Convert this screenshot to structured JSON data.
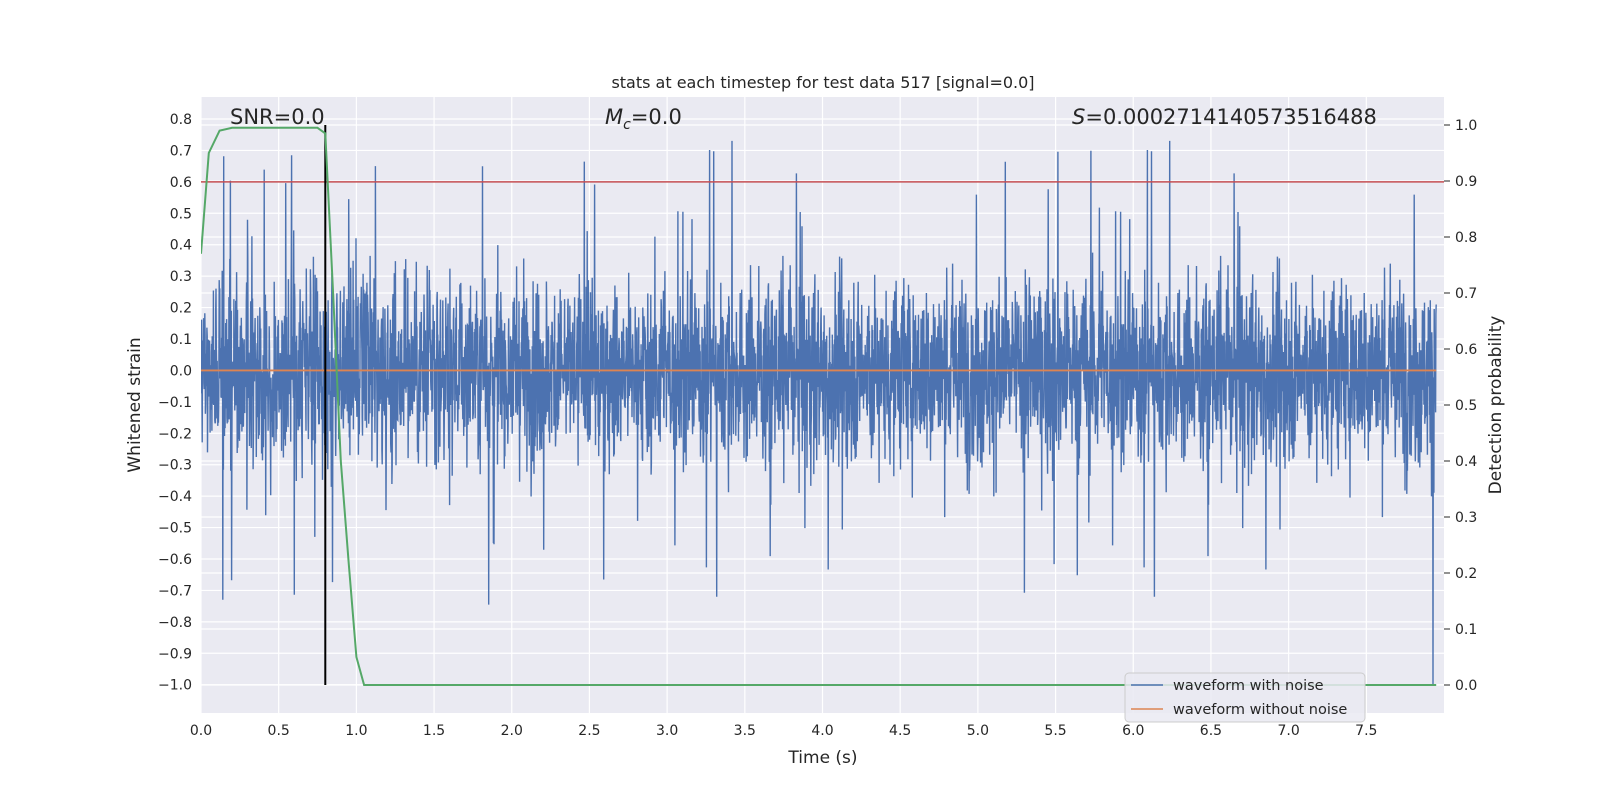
{
  "chart_data": {
    "type": "line",
    "title": "stats at each timestep for test data 517 [signal=0.0]",
    "xlabel": "Time (s)",
    "ylabel": "Whitened strain",
    "y2label": "Detection probability",
    "xlim": [
      0.0,
      8.0
    ],
    "ylim": [
      -1.09,
      0.87
    ],
    "y2lim": [
      -0.05,
      1.05
    ],
    "xticks": [
      0.0,
      0.5,
      1.0,
      1.5,
      2.0,
      2.5,
      3.0,
      3.5,
      4.0,
      4.5,
      5.0,
      5.5,
      6.0,
      6.5,
      7.0,
      7.5
    ],
    "xtick_labels": [
      "0.0",
      "0.5",
      "1.0",
      "1.5",
      "2.0",
      "2.5",
      "3.0",
      "3.5",
      "4.0",
      "4.5",
      "5.0",
      "5.5",
      "6.0",
      "6.5",
      "7.0",
      "7.5"
    ],
    "yticks": [
      0.8,
      0.7,
      0.6,
      0.5,
      0.4,
      0.3,
      0.2,
      0.1,
      0.0,
      -0.1,
      -0.2,
      -0.3,
      -0.4,
      -0.5,
      -0.6,
      -0.7,
      -0.8,
      -0.9,
      -1.0
    ],
    "ytick_labels": [
      "0.8",
      "0.7",
      "0.6",
      "0.5",
      "0.4",
      "0.3",
      "0.2",
      "0.1",
      "0.0",
      "−0.1",
      "−0.2",
      "−0.3",
      "−0.4",
      "−0.5",
      "−0.6",
      "−0.7",
      "−0.8",
      "−0.9",
      "−1.0"
    ],
    "y2ticks": [
      1.0,
      0.9,
      0.8,
      0.7,
      0.6,
      0.5,
      0.4,
      0.3,
      0.2,
      0.1,
      0.0
    ],
    "y2tick_labels": [
      "1.0",
      "0.9",
      "0.8",
      "0.7",
      "0.6",
      "0.5",
      "0.4",
      "0.3",
      "0.2",
      "0.1",
      "0.0"
    ],
    "annotations": {
      "snr": "SNR=0.0",
      "mc_symbol": "M",
      "mc_sub": "c",
      "mc_value": "=0.0",
      "s_symbol": "S",
      "s_value": "=0.0002714140573516488"
    },
    "threshold_y": 0.6,
    "vertical_marker_x": 0.8,
    "series": [
      {
        "name": "waveform with noise",
        "color": "#4c72b0",
        "axis": "left",
        "description_range": [
          -1.0,
          0.78
        ],
        "typical_amplitude": 0.25
      },
      {
        "name": "waveform without noise",
        "color": "#dd8452",
        "axis": "left",
        "value": 0.0
      },
      {
        "name": "detection probability",
        "color": "#55a868",
        "axis": "right",
        "x": [
          0.0,
          0.05,
          0.12,
          0.2,
          0.3,
          0.4,
          0.5,
          0.6,
          0.7,
          0.75,
          0.8,
          0.85,
          0.9,
          0.95,
          1.0,
          1.05,
          1.1,
          1.5,
          2.0,
          3.0,
          4.0,
          5.0,
          6.0,
          7.0,
          7.95
        ],
        "values": [
          0.77,
          0.95,
          0.99,
          0.995,
          0.995,
          0.995,
          0.995,
          0.995,
          0.995,
          0.995,
          0.985,
          0.7,
          0.4,
          0.22,
          0.05,
          0.0,
          0.0,
          0.0,
          0.0,
          0.0,
          0.0,
          0.0,
          0.0,
          0.0,
          0.0
        ]
      }
    ],
    "legend": {
      "placement": "lower-right",
      "entries": [
        "waveform with noise",
        "waveform without noise"
      ]
    },
    "grid": true,
    "colors": {
      "plot_bg": "#eaeaf2",
      "grid": "#ffffff",
      "threshold": "#c44e52",
      "marker": "#000000"
    }
  }
}
